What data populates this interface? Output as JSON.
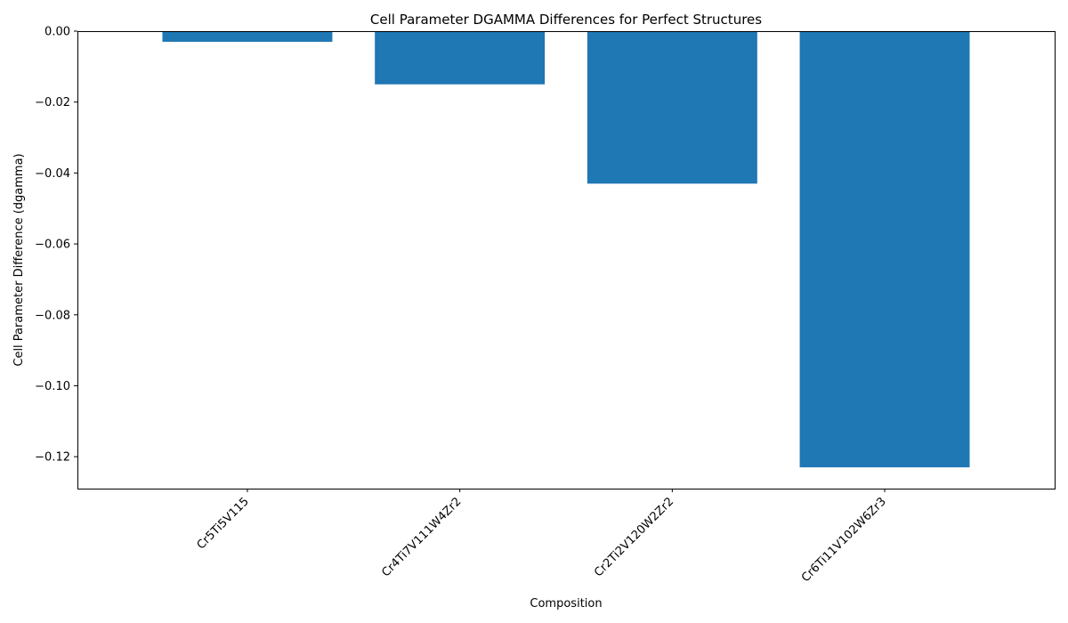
{
  "chart_data": {
    "type": "bar",
    "title": "Cell Parameter DGAMMA Differences for Perfect Structures",
    "xlabel": "Composition",
    "ylabel": "Cell Parameter Difference (dgamma)",
    "categories": [
      "Cr5Ti5V115",
      "Cr4Ti7V111W4Zr2",
      "Cr2Ti2V120W2Zr2",
      "Cr6Ti11V102W6Zr3"
    ],
    "values": [
      -0.003,
      -0.015,
      -0.043,
      -0.123
    ],
    "ylim": [
      -0.129,
      0.0
    ],
    "yticks": [
      0.0,
      -0.02,
      -0.04,
      -0.06,
      -0.08,
      -0.1,
      -0.12
    ],
    "ytick_labels": [
      "0.00",
      "−0.02",
      "−0.04",
      "−0.06",
      "−0.08",
      "−0.10",
      "−0.12"
    ],
    "bar_color": "#1f77b4",
    "grid": false,
    "legend": "none"
  }
}
